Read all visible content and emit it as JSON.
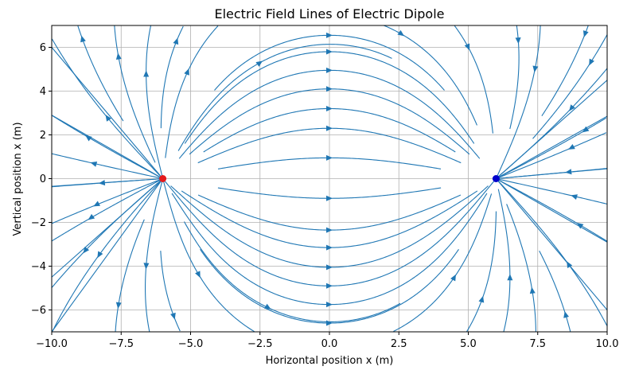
{
  "chart_data": {
    "type": "streamplot",
    "title": "Electric Field Lines of Electric Dipole",
    "xlabel": "Horizontal position x (m)",
    "ylabel": "Vertical position x (m)",
    "xlim": [
      -10,
      10
    ],
    "ylim": [
      -7,
      7
    ],
    "grid": true,
    "x_ticks": [
      -10.0,
      -7.5,
      -5.0,
      -2.5,
      0.0,
      2.5,
      5.0,
      7.5,
      10.0
    ],
    "x_tick_labels": [
      "−10.0",
      "−7.5",
      "−5.0",
      "−2.5",
      "0.0",
      "2.5",
      "5.0",
      "7.5",
      "10.0"
    ],
    "y_ticks": [
      6,
      4,
      2,
      0,
      -2,
      -4,
      -6
    ],
    "y_tick_labels": [
      "6",
      "4",
      "2",
      "0",
      "−2",
      "−4",
      "−6"
    ],
    "line_color": "#1f77b4",
    "charges": [
      {
        "label": "positive",
        "x": -6,
        "y": 0,
        "color": "#e41a1c"
      },
      {
        "label": "negative",
        "x": 6,
        "y": 0,
        "color": "#0000cc"
      }
    ]
  }
}
